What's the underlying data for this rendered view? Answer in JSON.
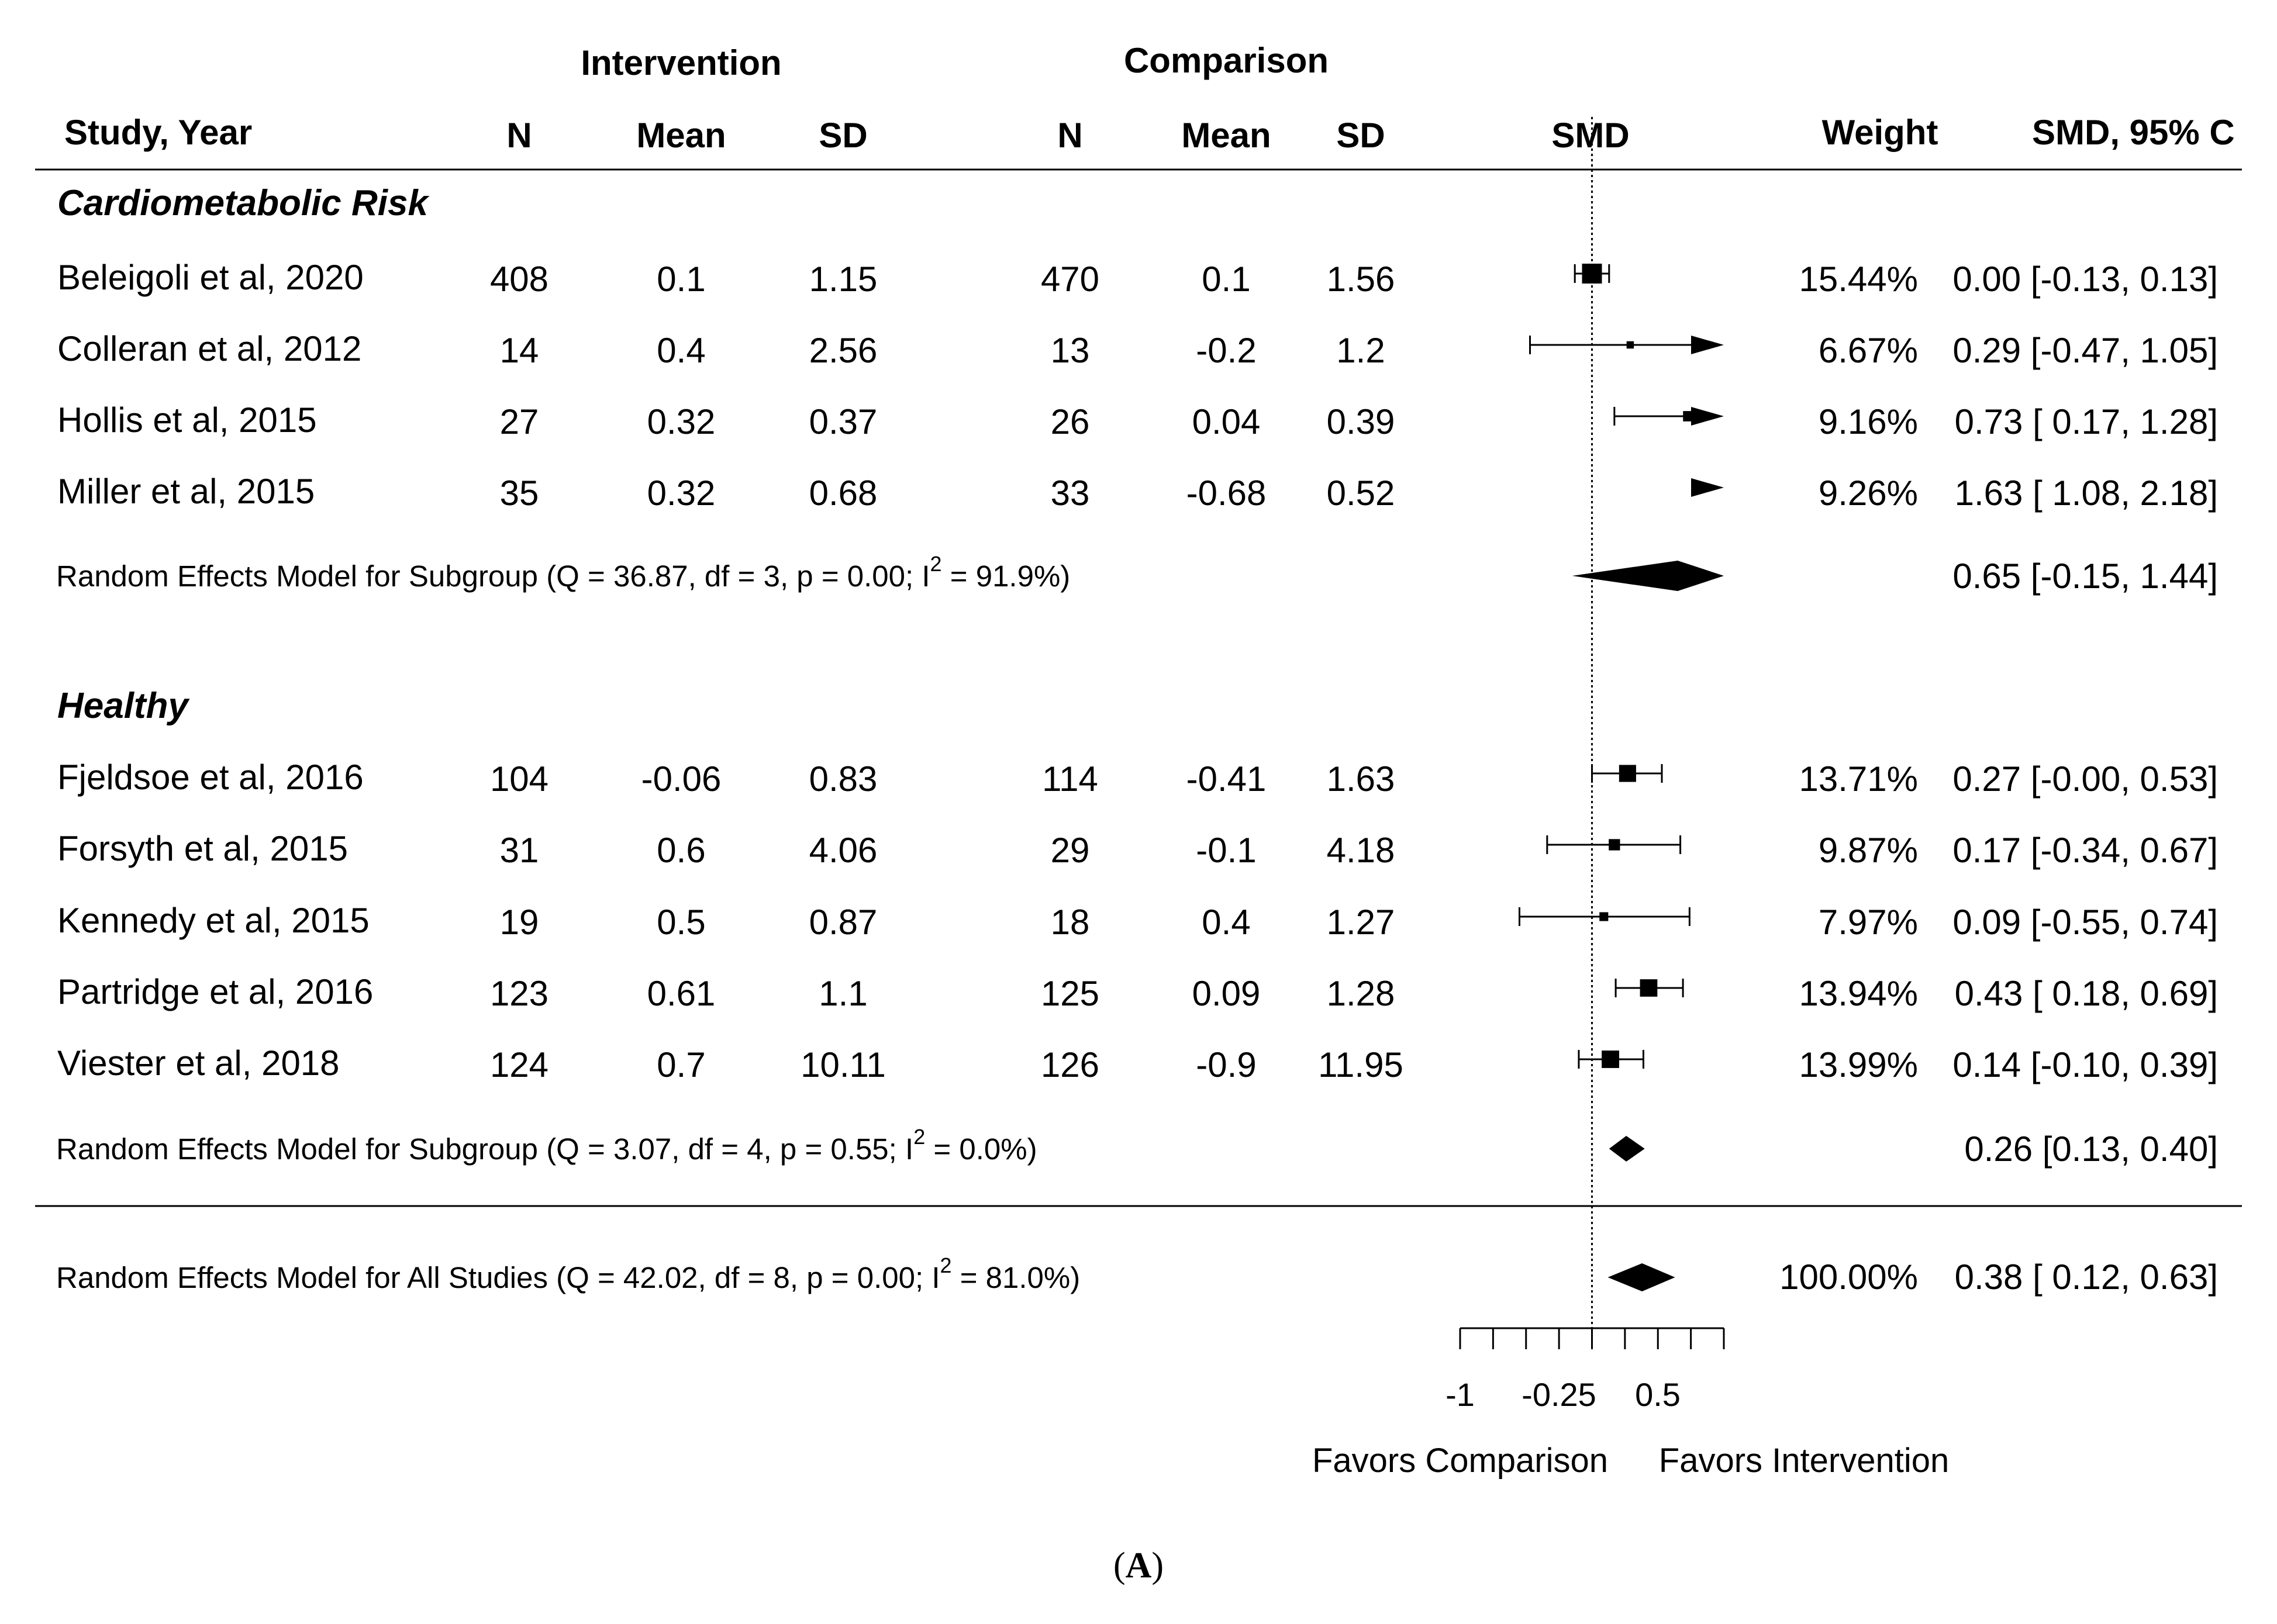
{
  "headers": {
    "intervention": "Intervention",
    "comparison": "Comparison",
    "study": "Study, Year",
    "n1": "N",
    "mean1": "Mean",
    "sd1": "SD",
    "n2": "N",
    "mean2": "Mean",
    "sd2": "SD",
    "smd": "SMD",
    "weight": "Weight",
    "ci": "SMD, 95% C"
  },
  "groups": [
    {
      "title": "Cardiometabolic Risk",
      "studies": [
        {
          "study": "Beleigoli et al, 2020",
          "n1": "408",
          "mean1": "0.1",
          "sd1": "1.15",
          "n2": "470",
          "mean2": "0.1",
          "sd2": "1.56",
          "weight": "15.44%",
          "ci_text": "0.00 [-0.13, 0.13]"
        },
        {
          "study": "Colleran et al, 2012",
          "n1": "14",
          "mean1": "0.4",
          "sd1": "2.56",
          "n2": "13",
          "mean2": "-0.2",
          "sd2": "1.2",
          "weight": "6.67%",
          "ci_text": "0.29 [-0.47, 1.05]"
        },
        {
          "study": "Hollis et al, 2015",
          "n1": "27",
          "mean1": "0.32",
          "sd1": "0.37",
          "n2": "26",
          "mean2": "0.04",
          "sd2": "0.39",
          "weight": "9.16%",
          "ci_text": "0.73 [ 0.17, 1.28]"
        },
        {
          "study": "Miller et al, 2015",
          "n1": "35",
          "mean1": "0.32",
          "sd1": "0.68",
          "n2": "33",
          "mean2": "-0.68",
          "sd2": "0.52",
          "weight": "9.26%",
          "ci_text": "1.63 [ 1.08, 2.18]"
        }
      ],
      "model_text": "Random Effects Model for Subgroup (Q = 36.87, df = 3, p = 0.00; I",
      "model_sup": "2",
      "model_tail": " = 91.9%)",
      "model_ci": "0.65 [-0.15, 1.44]"
    },
    {
      "title": "Healthy",
      "studies": [
        {
          "study": "Fjeldsoe et al, 2016",
          "n1": "104",
          "mean1": "-0.06",
          "sd1": "0.83",
          "n2": "114",
          "mean2": "-0.41",
          "sd2": "1.63",
          "weight": "13.71%",
          "ci_text": "0.27 [-0.00, 0.53]"
        },
        {
          "study": "Forsyth et al, 2015",
          "n1": "31",
          "mean1": "0.6",
          "sd1": "4.06",
          "n2": "29",
          "mean2": "-0.1",
          "sd2": "4.18",
          "weight": "9.87%",
          "ci_text": "0.17 [-0.34, 0.67]"
        },
        {
          "study": "Kennedy et al, 2015",
          "n1": "19",
          "mean1": "0.5",
          "sd1": "0.87",
          "n2": "18",
          "mean2": "0.4",
          "sd2": "1.27",
          "weight": "7.97%",
          "ci_text": "0.09 [-0.55, 0.74]"
        },
        {
          "study": "Partridge et al, 2016",
          "n1": "123",
          "mean1": "0.61",
          "sd1": "1.1",
          "n2": "125",
          "mean2": "0.09",
          "sd2": "1.28",
          "weight": "13.94%",
          "ci_text": "0.43 [ 0.18, 0.69]"
        },
        {
          "study": "Viester et al, 2018",
          "n1": "124",
          "mean1": "0.7",
          "sd1": "10.11",
          "n2": "126",
          "mean2": "-0.9",
          "sd2": "11.95",
          "weight": "13.99%",
          "ci_text": "0.14 [-0.10, 0.39]"
        }
      ],
      "model_text": "Random Effects Model for Subgroup (Q = 3.07, df = 4, p = 0.55; I",
      "model_sup": "2",
      "model_tail": " = 0.0%)",
      "model_ci": "0.26 [0.13, 0.40]"
    }
  ],
  "overall": {
    "model_text": "Random Effects Model for All Studies (Q = 42.02, df = 8, p = 0.00; I",
    "model_sup": "2",
    "model_tail": " = 81.0%)",
    "weight": "100.00%",
    "model_ci": "0.38 [ 0.12, 0.63]"
  },
  "axis": {
    "tick_labels": [
      "-1",
      "-0.25",
      "0.5"
    ],
    "favors_left": "Favors Comparison",
    "favors_right": "Favors Intervention"
  },
  "caption": {
    "open": "(",
    "letter": "A",
    "close": ")"
  },
  "chart_data": {
    "type": "forest",
    "xlabel": "SMD",
    "xlim": [
      -1,
      1
    ],
    "ticks": [
      -1,
      -0.75,
      -0.5,
      -0.25,
      0,
      0.25,
      0.5,
      0.75,
      1
    ],
    "tick_labels_shown": {
      "-1": "-1",
      "-0.25": "-0.25",
      "0.5": "0.5"
    },
    "reference_line": 0,
    "studies": [
      {
        "group": "Cardiometabolic Risk",
        "study": "Beleigoli et al, 2020",
        "smd": 0.0,
        "lower": -0.13,
        "upper": 0.13,
        "weight": 15.44
      },
      {
        "group": "Cardiometabolic Risk",
        "study": "Colleran et al, 2012",
        "smd": 0.29,
        "lower": -0.47,
        "upper": 1.05,
        "weight": 6.67
      },
      {
        "group": "Cardiometabolic Risk",
        "study": "Hollis et al, 2015",
        "smd": 0.73,
        "lower": 0.17,
        "upper": 1.28,
        "weight": 9.16
      },
      {
        "group": "Cardiometabolic Risk",
        "study": "Miller et al, 2015",
        "smd": 1.63,
        "lower": 1.08,
        "upper": 2.18,
        "weight": 9.26
      },
      {
        "group": "Healthy",
        "study": "Fjeldsoe et al, 2016",
        "smd": 0.27,
        "lower": -0.0,
        "upper": 0.53,
        "weight": 13.71
      },
      {
        "group": "Healthy",
        "study": "Forsyth et al, 2015",
        "smd": 0.17,
        "lower": -0.34,
        "upper": 0.67,
        "weight": 9.87
      },
      {
        "group": "Healthy",
        "study": "Kennedy et al, 2015",
        "smd": 0.09,
        "lower": -0.55,
        "upper": 0.74,
        "weight": 7.97
      },
      {
        "group": "Healthy",
        "study": "Partridge et al, 2016",
        "smd": 0.43,
        "lower": 0.18,
        "upper": 0.69,
        "weight": 13.94
      },
      {
        "group": "Healthy",
        "study": "Viester et al, 2018",
        "smd": 0.14,
        "lower": -0.1,
        "upper": 0.39,
        "weight": 13.99
      }
    ],
    "summaries": [
      {
        "label": "Cardiometabolic Risk subgroup",
        "smd": 0.65,
        "lower": -0.15,
        "upper": 1.44,
        "Q": 36.87,
        "df": 3,
        "p": 0.0,
        "I2": 91.9
      },
      {
        "label": "Healthy subgroup",
        "smd": 0.26,
        "lower": 0.13,
        "upper": 0.4,
        "Q": 3.07,
        "df": 4,
        "p": 0.55,
        "I2": 0.0
      },
      {
        "label": "All studies",
        "smd": 0.38,
        "lower": 0.12,
        "upper": 0.63,
        "Q": 42.02,
        "df": 8,
        "p": 0.0,
        "I2": 81.0,
        "weight": 100.0
      }
    ]
  }
}
